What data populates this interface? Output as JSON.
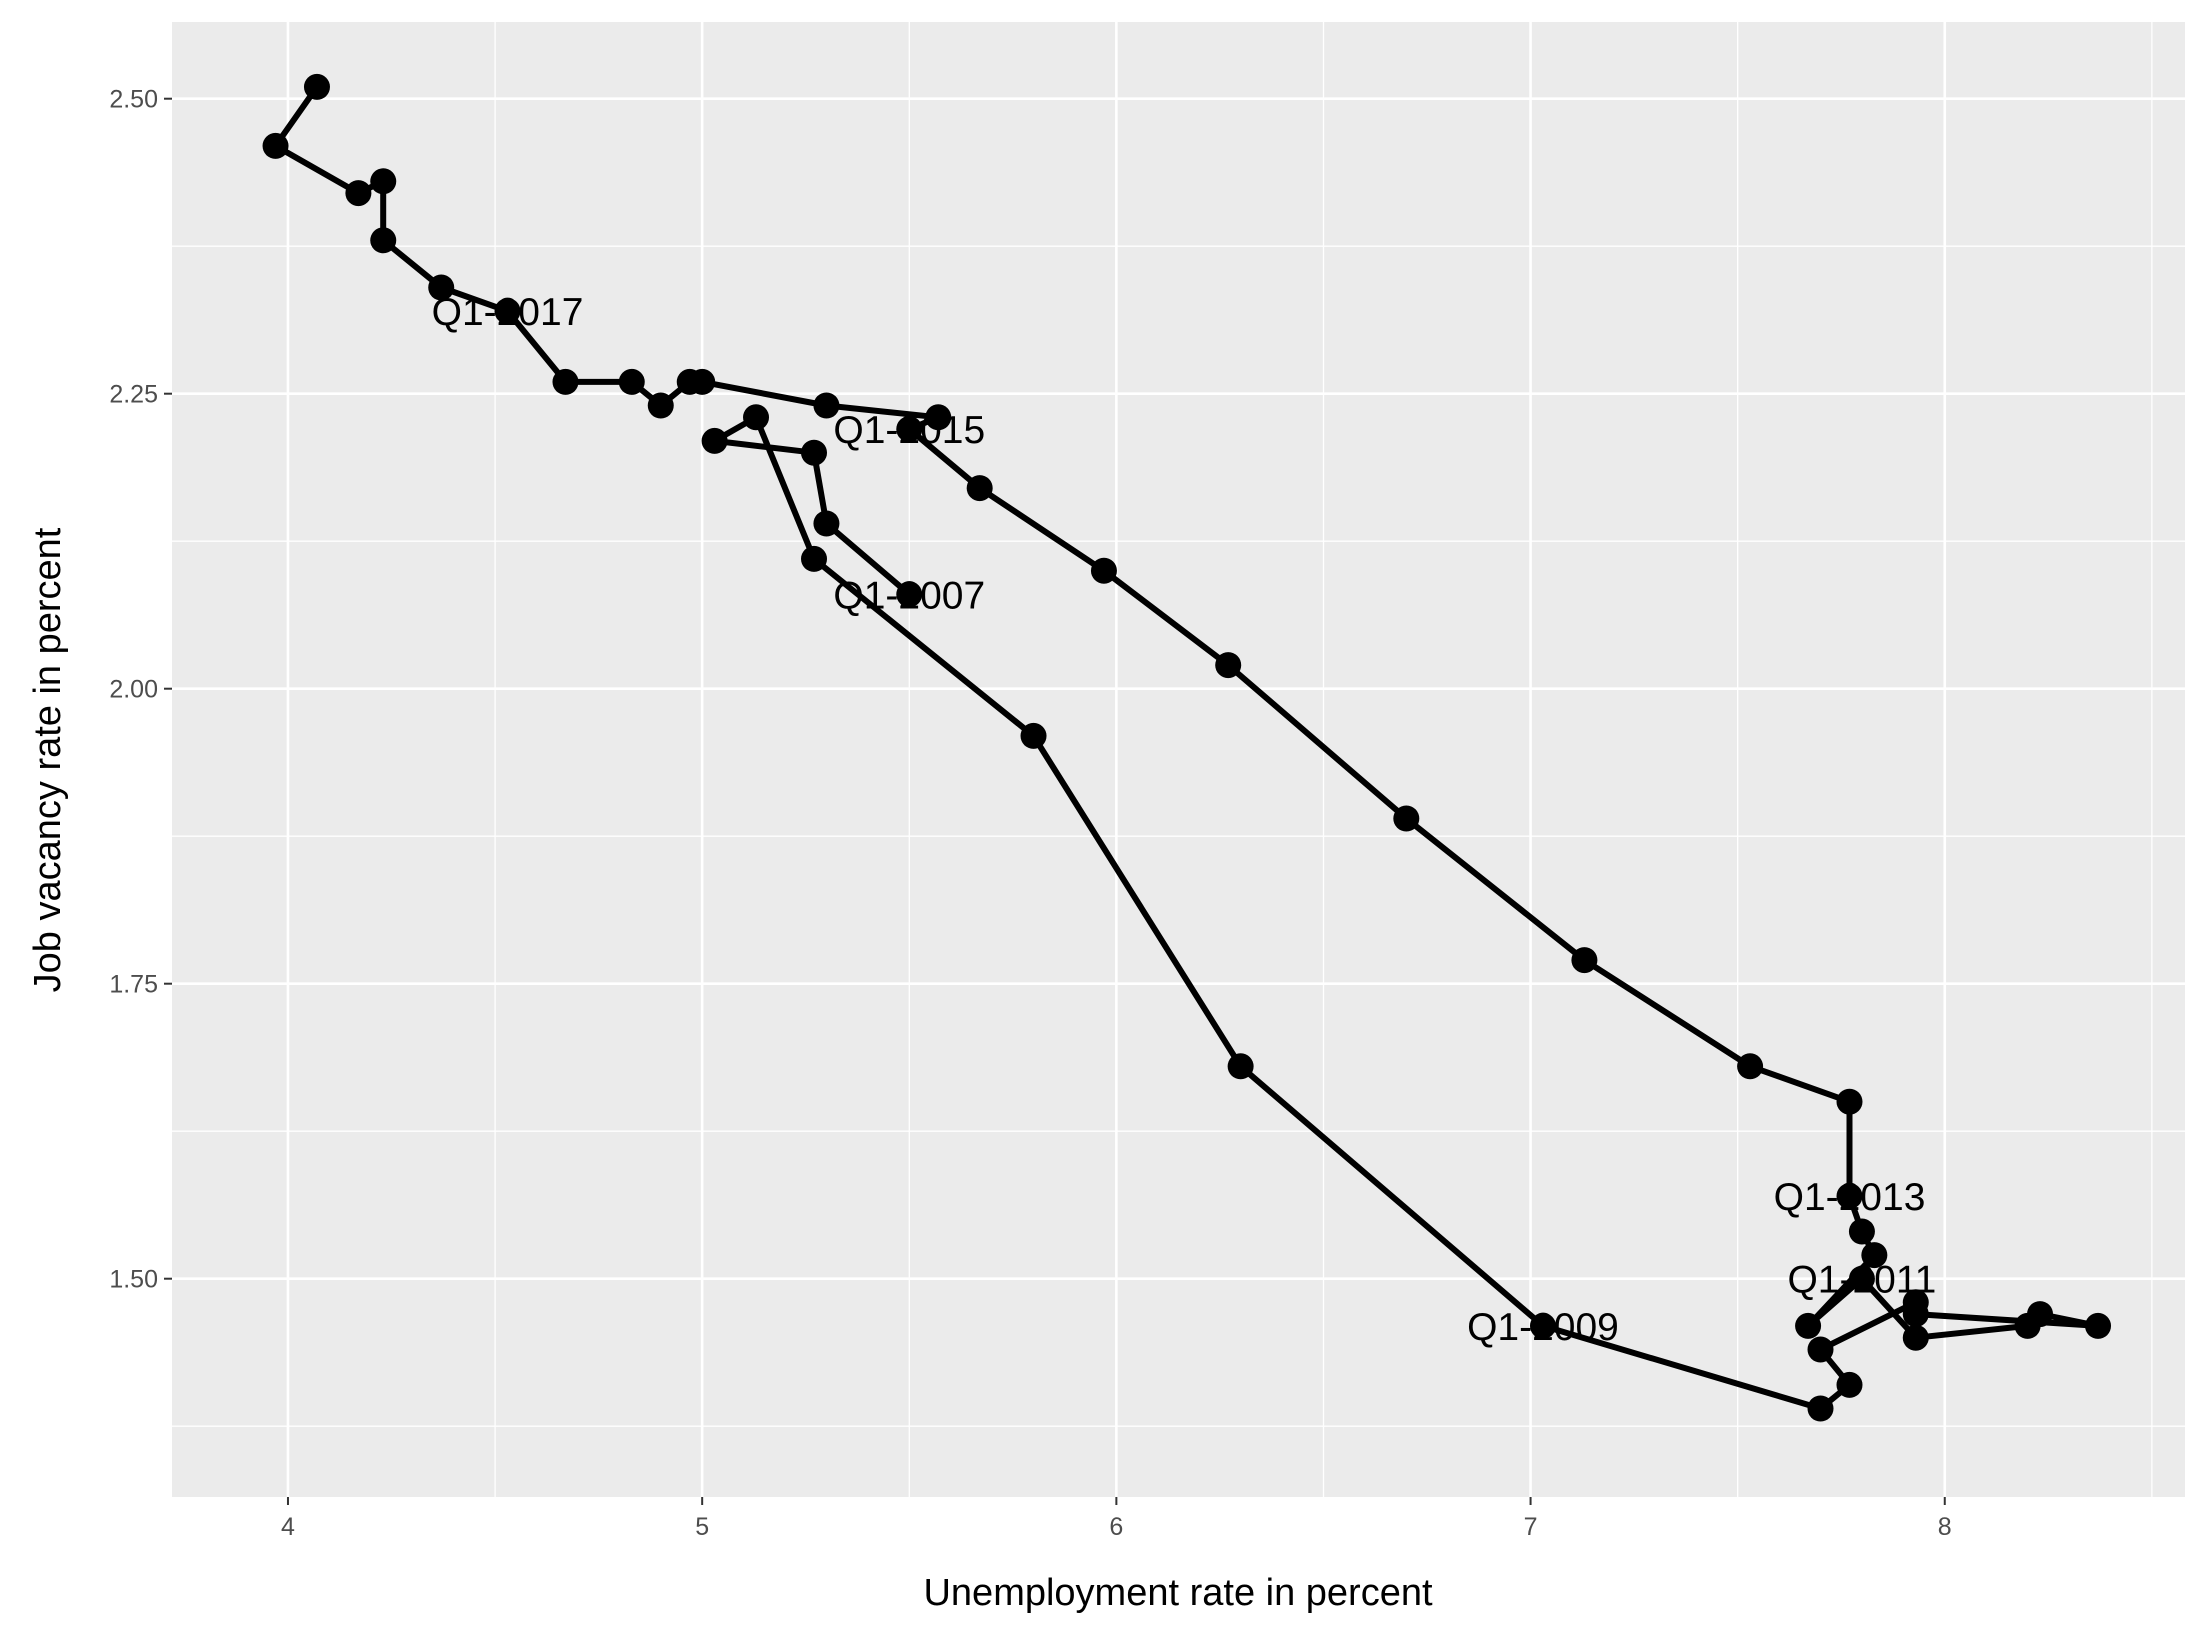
{
  "chart_data": {
    "type": "line",
    "title": "",
    "xlabel": "Unemployment rate in percent",
    "ylabel": "Job vacancy rate in percent",
    "xlim": [
      3.72,
      8.58
    ],
    "ylim": [
      1.315,
      2.565
    ],
    "x_ticks": [
      4,
      5,
      6,
      7,
      8
    ],
    "x_tick_labels": [
      "4",
      "5",
      "6",
      "7",
      "8"
    ],
    "y_ticks": [
      1.5,
      1.75,
      2.0,
      2.25,
      2.5
    ],
    "y_tick_labels": [
      "1.50",
      "1.75",
      "2.00",
      "2.25",
      "2.50"
    ],
    "grid": true,
    "legend": "none",
    "colors": {
      "panel": "#ebebeb",
      "grid": "#ffffff",
      "series": "#000000"
    },
    "series": [
      {
        "points": [
          [
            5.5,
            2.08
          ],
          [
            5.3,
            2.14
          ],
          [
            5.27,
            2.2
          ],
          [
            5.03,
            2.21
          ],
          [
            5.13,
            2.23
          ],
          [
            5.27,
            2.11
          ],
          [
            5.8,
            1.96
          ],
          [
            6.3,
            1.68
          ],
          [
            7.03,
            1.46
          ],
          [
            7.7,
            1.39
          ],
          [
            7.77,
            1.41
          ],
          [
            7.7,
            1.44
          ],
          [
            7.93,
            1.48
          ],
          [
            7.93,
            1.47
          ],
          [
            8.37,
            1.46
          ],
          [
            8.23,
            1.47
          ],
          [
            8.2,
            1.46
          ],
          [
            7.93,
            1.45
          ],
          [
            7.8,
            1.5
          ],
          [
            7.67,
            1.46
          ],
          [
            7.83,
            1.52
          ],
          [
            7.8,
            1.54
          ],
          [
            7.77,
            1.57
          ],
          [
            7.77,
            1.65
          ],
          [
            7.53,
            1.68
          ],
          [
            7.13,
            1.77
          ],
          [
            6.7,
            1.89
          ],
          [
            6.27,
            2.02
          ],
          [
            5.97,
            2.1
          ],
          [
            5.67,
            2.17
          ],
          [
            5.5,
            2.22
          ],
          [
            5.57,
            2.23
          ],
          [
            5.3,
            2.24
          ],
          [
            5.0,
            2.26
          ],
          [
            4.97,
            2.26
          ],
          [
            4.9,
            2.24
          ],
          [
            4.83,
            2.26
          ],
          [
            4.67,
            2.26
          ],
          [
            4.53,
            2.32
          ],
          [
            4.37,
            2.34
          ],
          [
            4.23,
            2.38
          ],
          [
            4.23,
            2.43
          ],
          [
            4.17,
            2.42
          ],
          [
            3.97,
            2.46
          ],
          [
            4.07,
            2.51
          ]
        ]
      }
    ],
    "annotations": [
      {
        "text": "Q1-2007",
        "x": 5.5,
        "y": 2.08
      },
      {
        "text": "Q1-2009",
        "x": 7.03,
        "y": 1.46
      },
      {
        "text": "Q1-2011",
        "x": 7.8,
        "y": 1.5
      },
      {
        "text": "Q1-2013",
        "x": 7.77,
        "y": 1.57
      },
      {
        "text": "Q1-2015",
        "x": 5.5,
        "y": 2.22
      },
      {
        "text": "Q1-2017",
        "x": 4.53,
        "y": 2.32
      }
    ]
  }
}
